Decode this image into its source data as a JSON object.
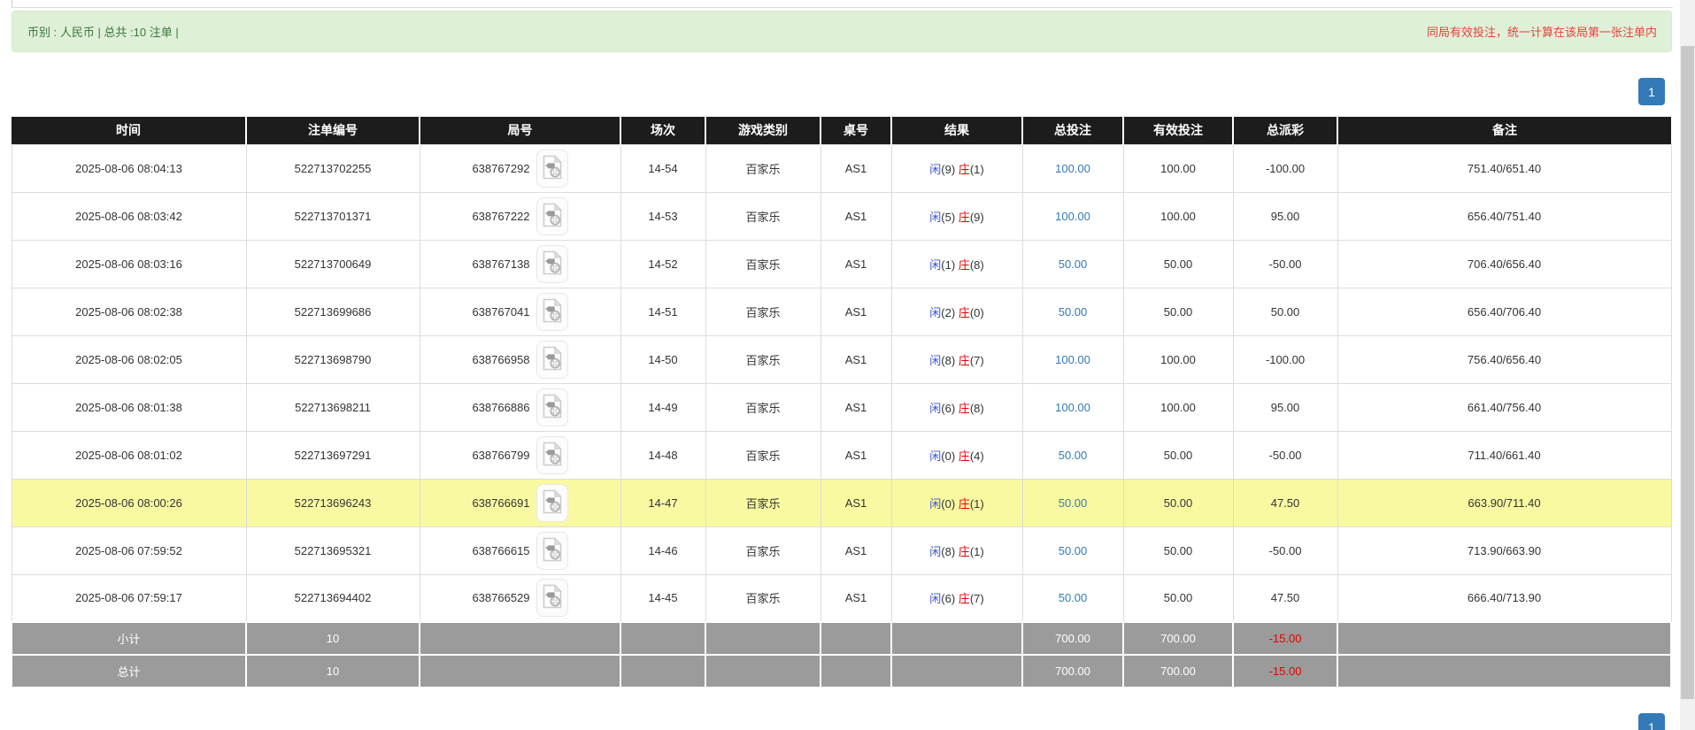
{
  "banner": {
    "left_text": "币别 : 人民币 | 总共 :10 注单 |",
    "notice_text": "同局有效投注，统一计算在该局第一张注单内"
  },
  "pagination": {
    "page": "1"
  },
  "table": {
    "headers": [
      "时间",
      "注单编号",
      "局号",
      "场次",
      "游戏类别",
      "桌号",
      "结果",
      "总投注",
      "有效投注",
      "总派彩",
      "备注"
    ],
    "rows": [
      {
        "time": "2025-08-06 08:04:13",
        "bet_id": "522713702255",
        "round_id": "638767292",
        "session": "14-54",
        "game": "百家乐",
        "table_id": "AS1",
        "result": {
          "player": "闲",
          "player_pts": "(9)",
          "banker": "庄",
          "banker_pts": "(1)"
        },
        "total_bet": "100.00",
        "valid_bet": "100.00",
        "payout": "-100.00",
        "remark": "751.40/651.40",
        "highlighted": false
      },
      {
        "time": "2025-08-06 08:03:42",
        "bet_id": "522713701371",
        "round_id": "638767222",
        "session": "14-53",
        "game": "百家乐",
        "table_id": "AS1",
        "result": {
          "player": "闲",
          "player_pts": "(5)",
          "banker": "庄",
          "banker_pts": "(9)"
        },
        "total_bet": "100.00",
        "valid_bet": "100.00",
        "payout": "95.00",
        "remark": "656.40/751.40",
        "highlighted": false
      },
      {
        "time": "2025-08-06 08:03:16",
        "bet_id": "522713700649",
        "round_id": "638767138",
        "session": "14-52",
        "game": "百家乐",
        "table_id": "AS1",
        "result": {
          "player": "闲",
          "player_pts": "(1)",
          "banker": "庄",
          "banker_pts": "(8)"
        },
        "total_bet": "50.00",
        "valid_bet": "50.00",
        "payout": "-50.00",
        "remark": "706.40/656.40",
        "highlighted": false
      },
      {
        "time": "2025-08-06 08:02:38",
        "bet_id": "522713699686",
        "round_id": "638767041",
        "session": "14-51",
        "game": "百家乐",
        "table_id": "AS1",
        "result": {
          "player": "闲",
          "player_pts": "(2)",
          "banker": "庄",
          "banker_pts": "(0)"
        },
        "total_bet": "50.00",
        "valid_bet": "50.00",
        "payout": "50.00",
        "remark": "656.40/706.40",
        "highlighted": false
      },
      {
        "time": "2025-08-06 08:02:05",
        "bet_id": "522713698790",
        "round_id": "638766958",
        "session": "14-50",
        "game": "百家乐",
        "table_id": "AS1",
        "result": {
          "player": "闲",
          "player_pts": "(8)",
          "banker": "庄",
          "banker_pts": "(7)"
        },
        "total_bet": "100.00",
        "valid_bet": "100.00",
        "payout": "-100.00",
        "remark": "756.40/656.40",
        "highlighted": false
      },
      {
        "time": "2025-08-06 08:01:38",
        "bet_id": "522713698211",
        "round_id": "638766886",
        "session": "14-49",
        "game": "百家乐",
        "table_id": "AS1",
        "result": {
          "player": "闲",
          "player_pts": "(6)",
          "banker": "庄",
          "banker_pts": "(8)"
        },
        "total_bet": "100.00",
        "valid_bet": "100.00",
        "payout": "95.00",
        "remark": "661.40/756.40",
        "highlighted": false
      },
      {
        "time": "2025-08-06 08:01:02",
        "bet_id": "522713697291",
        "round_id": "638766799",
        "session": "14-48",
        "game": "百家乐",
        "table_id": "AS1",
        "result": {
          "player": "闲",
          "player_pts": "(0)",
          "banker": "庄",
          "banker_pts": "(4)"
        },
        "total_bet": "50.00",
        "valid_bet": "50.00",
        "payout": "-50.00",
        "remark": "711.40/661.40",
        "highlighted": false
      },
      {
        "time": "2025-08-06 08:00:26",
        "bet_id": "522713696243",
        "round_id": "638766691",
        "session": "14-47",
        "game": "百家乐",
        "table_id": "AS1",
        "result": {
          "player": "闲",
          "player_pts": "(0)",
          "banker": "庄",
          "banker_pts": "(1)"
        },
        "total_bet": "50.00",
        "valid_bet": "50.00",
        "payout": "47.50",
        "remark": "663.90/711.40",
        "highlighted": true
      },
      {
        "time": "2025-08-06 07:59:52",
        "bet_id": "522713695321",
        "round_id": "638766615",
        "session": "14-46",
        "game": "百家乐",
        "table_id": "AS1",
        "result": {
          "player": "闲",
          "player_pts": "(8)",
          "banker": "庄",
          "banker_pts": "(1)"
        },
        "total_bet": "50.00",
        "valid_bet": "50.00",
        "payout": "-50.00",
        "remark": "713.90/663.90",
        "highlighted": false
      },
      {
        "time": "2025-08-06 07:59:17",
        "bet_id": "522713694402",
        "round_id": "638766529",
        "session": "14-45",
        "game": "百家乐",
        "table_id": "AS1",
        "result": {
          "player": "闲",
          "player_pts": "(6)",
          "banker": "庄",
          "banker_pts": "(7)"
        },
        "total_bet": "50.00",
        "valid_bet": "50.00",
        "payout": "47.50",
        "remark": "666.40/713.90",
        "highlighted": false
      }
    ],
    "subtotal": {
      "label": "小计",
      "count": "10",
      "total_bet": "700.00",
      "valid_bet": "700.00",
      "payout": "-15.00",
      "remark": ""
    },
    "total": {
      "label": "总计",
      "count": "10",
      "total_bet": "700.00",
      "valid_bet": "700.00",
      "payout": "-15.00",
      "remark": ""
    }
  },
  "icons": {
    "round_video_icon": "video-file-icon"
  },
  "colors": {
    "accent_blue": "#337ab7",
    "link_blue": "#337ab7",
    "player_blue": "#3c55d0",
    "banker_red": "#e60000",
    "negative_red": "#e60000",
    "notice_red": "#e4423c",
    "highlight_yellow": "#f9f9a2",
    "header_bg": "#1c1c1c",
    "summary_bg": "#9b9b9b",
    "green_bg": "#dff0d8",
    "green_border": "#d6e9c6",
    "green_text": "#3c763d"
  }
}
